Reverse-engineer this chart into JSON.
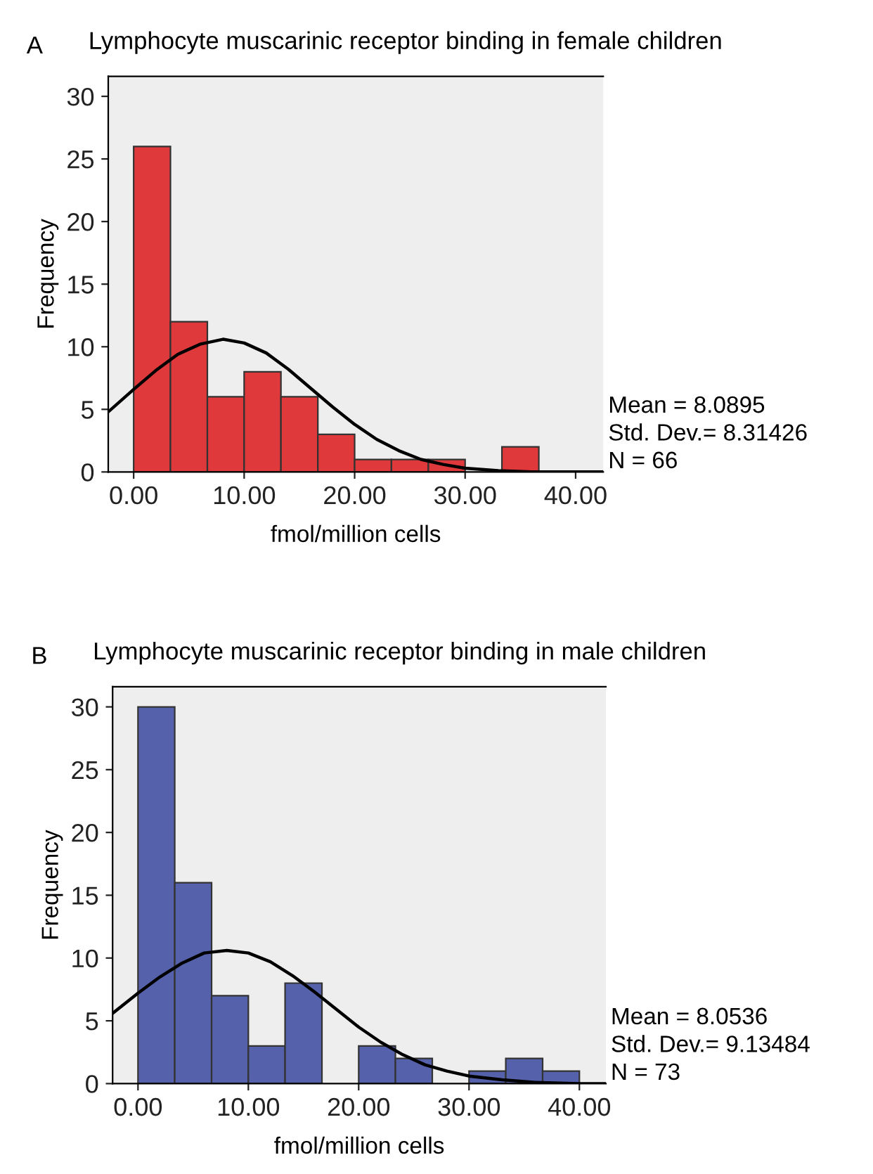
{
  "chart_data": [
    {
      "type": "histogram",
      "title": "Lymphocyte muscarinic receptor binding in female children",
      "xlabel": "fmol/million cells",
      "ylabel": "Frequency",
      "annotations": [
        "A",
        "Mean = 8.0895",
        "Std. Dev.= 8.31426",
        "N = 66"
      ],
      "bins": [
        0,
        3.33,
        6.67,
        10,
        13.33,
        16.67,
        20,
        23.33,
        26.67,
        30,
        33.33,
        36.67
      ],
      "values": [
        26,
        12,
        6,
        8,
        6,
        3,
        1,
        1,
        1,
        0,
        2
      ],
      "color": "#e0393b",
      "series": [
        {
          "type": "line",
          "color": "#000000",
          "x": [
            -2.3,
            0,
            2,
            4,
            6,
            8.09,
            10,
            12,
            14,
            16,
            18,
            20,
            22,
            24,
            26,
            28,
            30,
            33,
            36,
            40,
            42.5
          ],
          "values": [
            4.8,
            6.6,
            8.1,
            9.4,
            10.2,
            10.6,
            10.3,
            9.5,
            8.2,
            6.7,
            5.2,
            3.8,
            2.6,
            1.7,
            1,
            0.6,
            0.3,
            0.1,
            0,
            0,
            0
          ]
        }
      ],
      "xlim": [
        -2.3,
        42.5
      ],
      "xticks": [
        {
          "value": 0,
          "label": "0.00"
        },
        {
          "value": 10,
          "label": "10.00"
        },
        {
          "value": 20,
          "label": "20.00"
        },
        {
          "value": 30,
          "label": "30.00"
        },
        {
          "value": 40,
          "label": "40.00"
        }
      ],
      "ylim": [
        0,
        31.6
      ],
      "yticks": [
        0,
        5,
        10,
        15,
        20,
        25,
        30
      ],
      "grid": false
    },
    {
      "type": "histogram",
      "title": "Lymphocyte muscarinic receptor binding in male children",
      "xlabel": "fmol/million cells",
      "ylabel": "Frequency",
      "annotations": [
        "B",
        "Mean = 8.0536",
        "Std. Dev.= 9.13484",
        "N = 73"
      ],
      "bins": [
        0,
        3.33,
        6.67,
        10,
        13.33,
        16.67,
        20,
        23.33,
        26.67,
        30,
        33.33,
        36.67,
        40
      ],
      "values": [
        30,
        16,
        7,
        3,
        8,
        0,
        3,
        2,
        0,
        1,
        2,
        1
      ],
      "color": "#5661ab",
      "series": [
        {
          "type": "line",
          "color": "#000000",
          "x": [
            -2.3,
            0,
            2,
            4,
            6,
            8.05,
            10,
            12,
            14,
            16,
            18,
            20,
            22,
            24,
            26,
            28,
            30,
            33,
            36,
            40,
            42.4
          ],
          "values": [
            5.6,
            7.2,
            8.5,
            9.6,
            10.4,
            10.6,
            10.4,
            9.7,
            8.6,
            7.3,
            5.9,
            4.5,
            3.3,
            2.3,
            1.5,
            1,
            0.6,
            0.3,
            0.1,
            0,
            0
          ]
        }
      ],
      "xlim": [
        -2.3,
        42.4
      ],
      "xticks": [
        {
          "value": 0,
          "label": "0.00"
        },
        {
          "value": 10,
          "label": "10.00"
        },
        {
          "value": 20,
          "label": "20.00"
        },
        {
          "value": 30,
          "label": "30.00"
        },
        {
          "value": 40,
          "label": "40.00"
        }
      ],
      "ylim": [
        0,
        31.6
      ],
      "yticks": [
        0,
        5,
        10,
        15,
        20,
        25,
        30
      ],
      "grid": false
    }
  ]
}
